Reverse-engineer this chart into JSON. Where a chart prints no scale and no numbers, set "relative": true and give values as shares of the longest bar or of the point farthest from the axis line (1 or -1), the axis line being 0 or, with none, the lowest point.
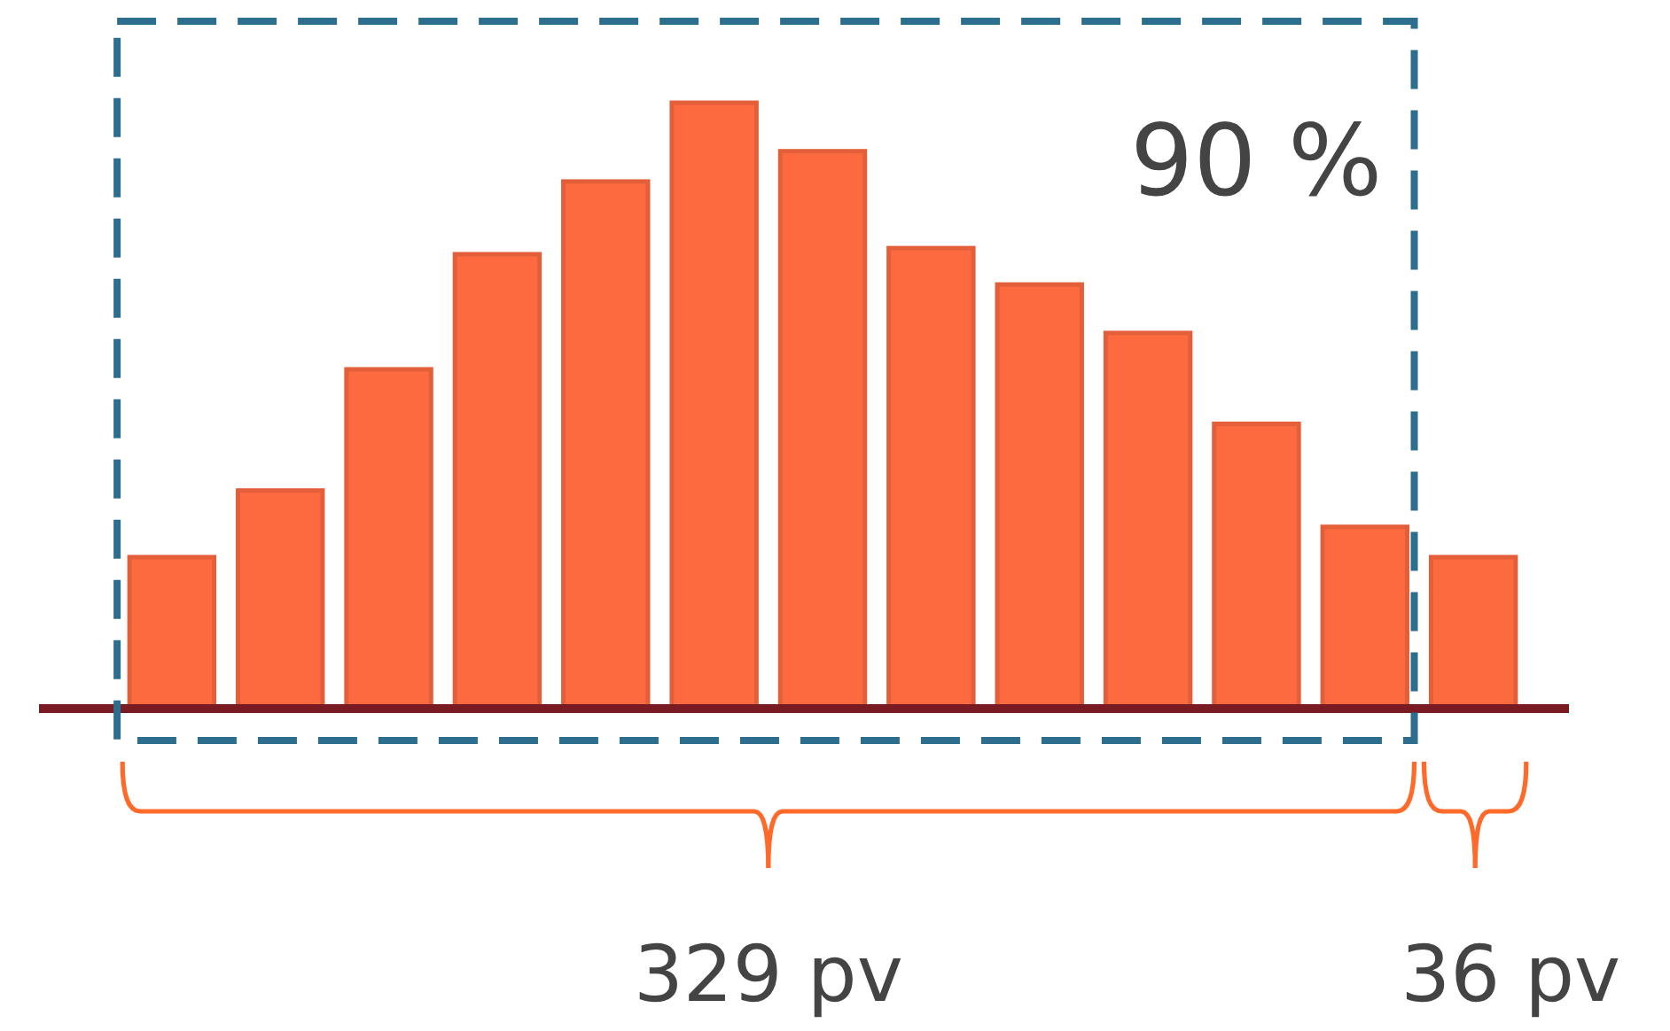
{
  "chart_data": {
    "type": "bar",
    "relative": true,
    "categories": [
      null,
      null,
      null,
      null,
      null,
      null,
      null,
      null,
      null,
      null,
      null,
      null,
      null
    ],
    "values": [
      0.25,
      0.36,
      0.56,
      0.75,
      0.87,
      1,
      0.92,
      0.76,
      0.7,
      0.62,
      0.47,
      0.3,
      0.25
    ],
    "color": "#fd6a40",
    "annotations": [
      "90 %",
      "329 pv",
      "36 pv"
    ]
  }
}
